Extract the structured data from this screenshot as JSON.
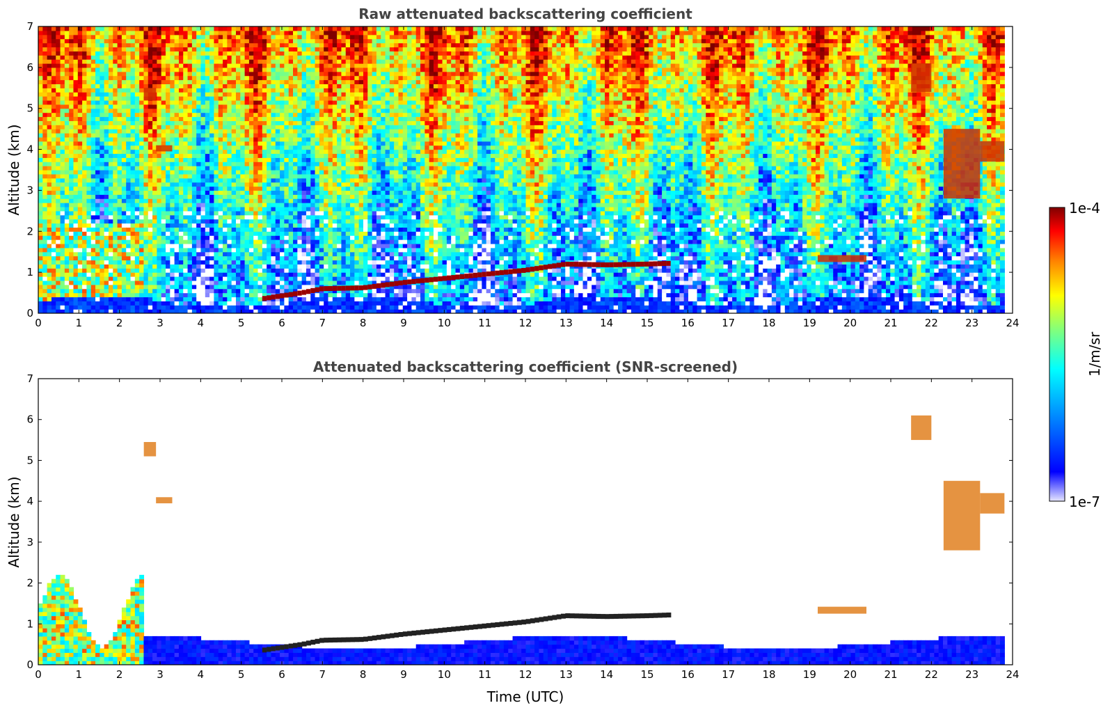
{
  "chart_data": [
    {
      "type": "heatmap",
      "title": "Raw attenuated backscattering coefficient",
      "xlabel": "",
      "ylabel": "Altitude (km)",
      "xlim": [
        0,
        24
      ],
      "ylim": [
        0,
        7
      ],
      "x_ticks": [
        "0",
        "1",
        "2",
        "3",
        "4",
        "5",
        "6",
        "7",
        "8",
        "9",
        "10",
        "11",
        "12",
        "13",
        "14",
        "15",
        "16",
        "17",
        "18",
        "19",
        "20",
        "21",
        "22",
        "23",
        "24"
      ],
      "y_ticks": [
        "0",
        "1",
        "2",
        "3",
        "4",
        "5",
        "6",
        "7"
      ],
      "data_end_hour": 23.8,
      "cloud_base_layer": [
        [
          5.5,
          0.35
        ],
        [
          6.5,
          0.5
        ],
        [
          7,
          0.6
        ],
        [
          8,
          0.62
        ],
        [
          9,
          0.75
        ],
        [
          10,
          0.85
        ],
        [
          11,
          0.95
        ],
        [
          12,
          1.05
        ],
        [
          13,
          1.2
        ],
        [
          14,
          1.18
        ],
        [
          15,
          1.2
        ],
        [
          15.6,
          1.22
        ]
      ],
      "features": [
        {
          "x": [
            2.6,
            2.9
          ],
          "y": [
            5.2,
            5.5
          ]
        },
        {
          "x": [
            2.9,
            3.3
          ],
          "y": [
            3.95,
            4.1
          ]
        },
        {
          "x": [
            19.2,
            20.4
          ],
          "y": [
            1.25,
            1.42
          ]
        },
        {
          "x": [
            21.5,
            22.0
          ],
          "y": [
            5.4,
            6.1
          ]
        },
        {
          "x": [
            22.3,
            23.2
          ],
          "y": [
            2.8,
            4.5
          ]
        },
        {
          "x": [
            23.2,
            23.8
          ],
          "y": [
            3.7,
            4.2
          ]
        }
      ]
    },
    {
      "type": "heatmap",
      "title": "Attenuated backscattering coefficient (SNR-screened)",
      "xlabel": "Time (UTC)",
      "ylabel": "Altitude (km)",
      "xlim": [
        0,
        24
      ],
      "ylim": [
        0,
        7
      ],
      "x_ticks": [
        "0",
        "1",
        "2",
        "3",
        "4",
        "5",
        "6",
        "7",
        "8",
        "9",
        "10",
        "11",
        "12",
        "13",
        "14",
        "15",
        "16",
        "17",
        "18",
        "19",
        "20",
        "21",
        "22",
        "23",
        "24"
      ],
      "y_ticks": [
        "0",
        "1",
        "2",
        "3",
        "4",
        "5",
        "6",
        "7"
      ],
      "data_end_hour": 23.8,
      "cloud_base_layer": [
        [
          5.5,
          0.35
        ],
        [
          6.5,
          0.5
        ],
        [
          7,
          0.6
        ],
        [
          8,
          0.62
        ],
        [
          9,
          0.75
        ],
        [
          10,
          0.85
        ],
        [
          11,
          0.95
        ],
        [
          12,
          1.05
        ],
        [
          13,
          1.2
        ],
        [
          14,
          1.18
        ],
        [
          15,
          1.2
        ],
        [
          15.6,
          1.22
        ]
      ],
      "features": [
        {
          "x": [
            2.6,
            2.9
          ],
          "y": [
            5.1,
            5.45
          ]
        },
        {
          "x": [
            2.9,
            3.3
          ],
          "y": [
            3.95,
            4.1
          ]
        },
        {
          "x": [
            19.2,
            20.4
          ],
          "y": [
            1.25,
            1.42
          ]
        },
        {
          "x": [
            21.5,
            22.0
          ],
          "y": [
            5.5,
            6.1
          ]
        },
        {
          "x": [
            22.3,
            23.2
          ],
          "y": [
            2.8,
            4.5
          ]
        },
        {
          "x": [
            23.2,
            23.8
          ],
          "y": [
            3.7,
            4.2
          ]
        }
      ]
    }
  ],
  "colorbar": {
    "label": "1/m/sr",
    "max_label": "1e-4",
    "min_label": "1e-7",
    "range": [
      1e-07,
      0.0001
    ],
    "scale": "log",
    "colormap": [
      "#ffffff",
      "#0000ff",
      "#00bfff",
      "#00ffff",
      "#7fff7f",
      "#ffff00",
      "#ff7f00",
      "#ff0000",
      "#7f0000"
    ]
  }
}
